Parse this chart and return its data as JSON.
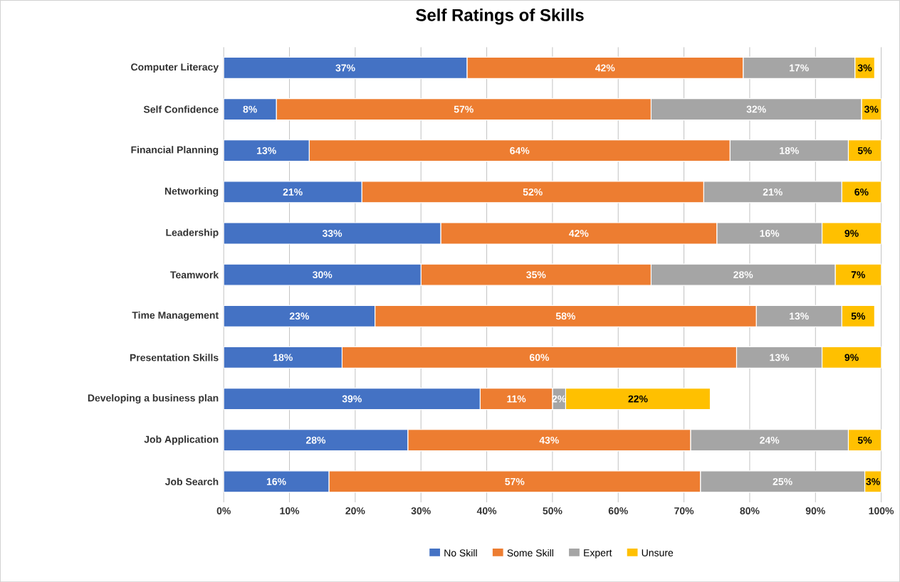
{
  "chart_data": {
    "type": "bar",
    "orientation": "horizontal",
    "stacked": true,
    "title": "Self Ratings of Skills",
    "categories": [
      "Computer Literacy",
      "Self Confidence",
      "Financial Planning",
      "Networking",
      "Leadership",
      "Teamwork",
      "Time Management",
      "Presentation Skills",
      "Developing a business plan",
      "Job Application",
      "Job Search"
    ],
    "series": [
      {
        "name": "No Skill",
        "color": "#4472c4",
        "values": [
          37,
          8,
          13,
          21,
          33,
          30,
          23,
          18,
          39,
          28,
          16
        ],
        "value_labels": [
          "37%",
          "8%",
          "13%",
          "21%",
          "33%",
          "30%",
          "23%",
          "18%",
          "39%",
          "28%",
          "16%"
        ]
      },
      {
        "name": "Some Skill",
        "color": "#ed7d31",
        "values": [
          42,
          57,
          64,
          52,
          42,
          35,
          58,
          60,
          11,
          43,
          56.5
        ],
        "value_labels": [
          "42%",
          "57%",
          "64%",
          "52%",
          "42%",
          "35%",
          "58%",
          "60%",
          "11%",
          "43%",
          "57%"
        ]
      },
      {
        "name": "Expert",
        "color": "#a5a5a5",
        "values": [
          17,
          32,
          18,
          21,
          16,
          28,
          13,
          13,
          2,
          24,
          25
        ],
        "value_labels": [
          "17%",
          "32%",
          "18%",
          "21%",
          "16%",
          "28%",
          "13%",
          "13%",
          "2%",
          "24%",
          "25%"
        ]
      },
      {
        "name": "Unsure",
        "color": "#ffc000",
        "values": [
          3,
          3,
          5,
          6,
          9,
          7,
          5,
          9,
          22,
          5,
          2.5
        ],
        "value_labels": [
          "3%",
          "3%",
          "5%",
          "6%",
          "9%",
          "7%",
          "5%",
          "9%",
          "22%",
          "5%",
          "3%"
        ]
      }
    ],
    "xlim": [
      0,
      100
    ],
    "xticks": [
      {
        "value": 0,
        "label": "0%"
      },
      {
        "value": 10,
        "label": "10%"
      },
      {
        "value": 20,
        "label": "20%"
      },
      {
        "value": 30,
        "label": "30%"
      },
      {
        "value": 40,
        "label": "40%"
      },
      {
        "value": 50,
        "label": "50%"
      },
      {
        "value": 60,
        "label": "60%"
      },
      {
        "value": 70,
        "label": "70%"
      },
      {
        "value": 80,
        "label": "80%"
      },
      {
        "value": 90,
        "label": "90%"
      },
      {
        "value": 100,
        "label": "100%"
      }
    ],
    "grid": "x",
    "legend": "bottom"
  }
}
